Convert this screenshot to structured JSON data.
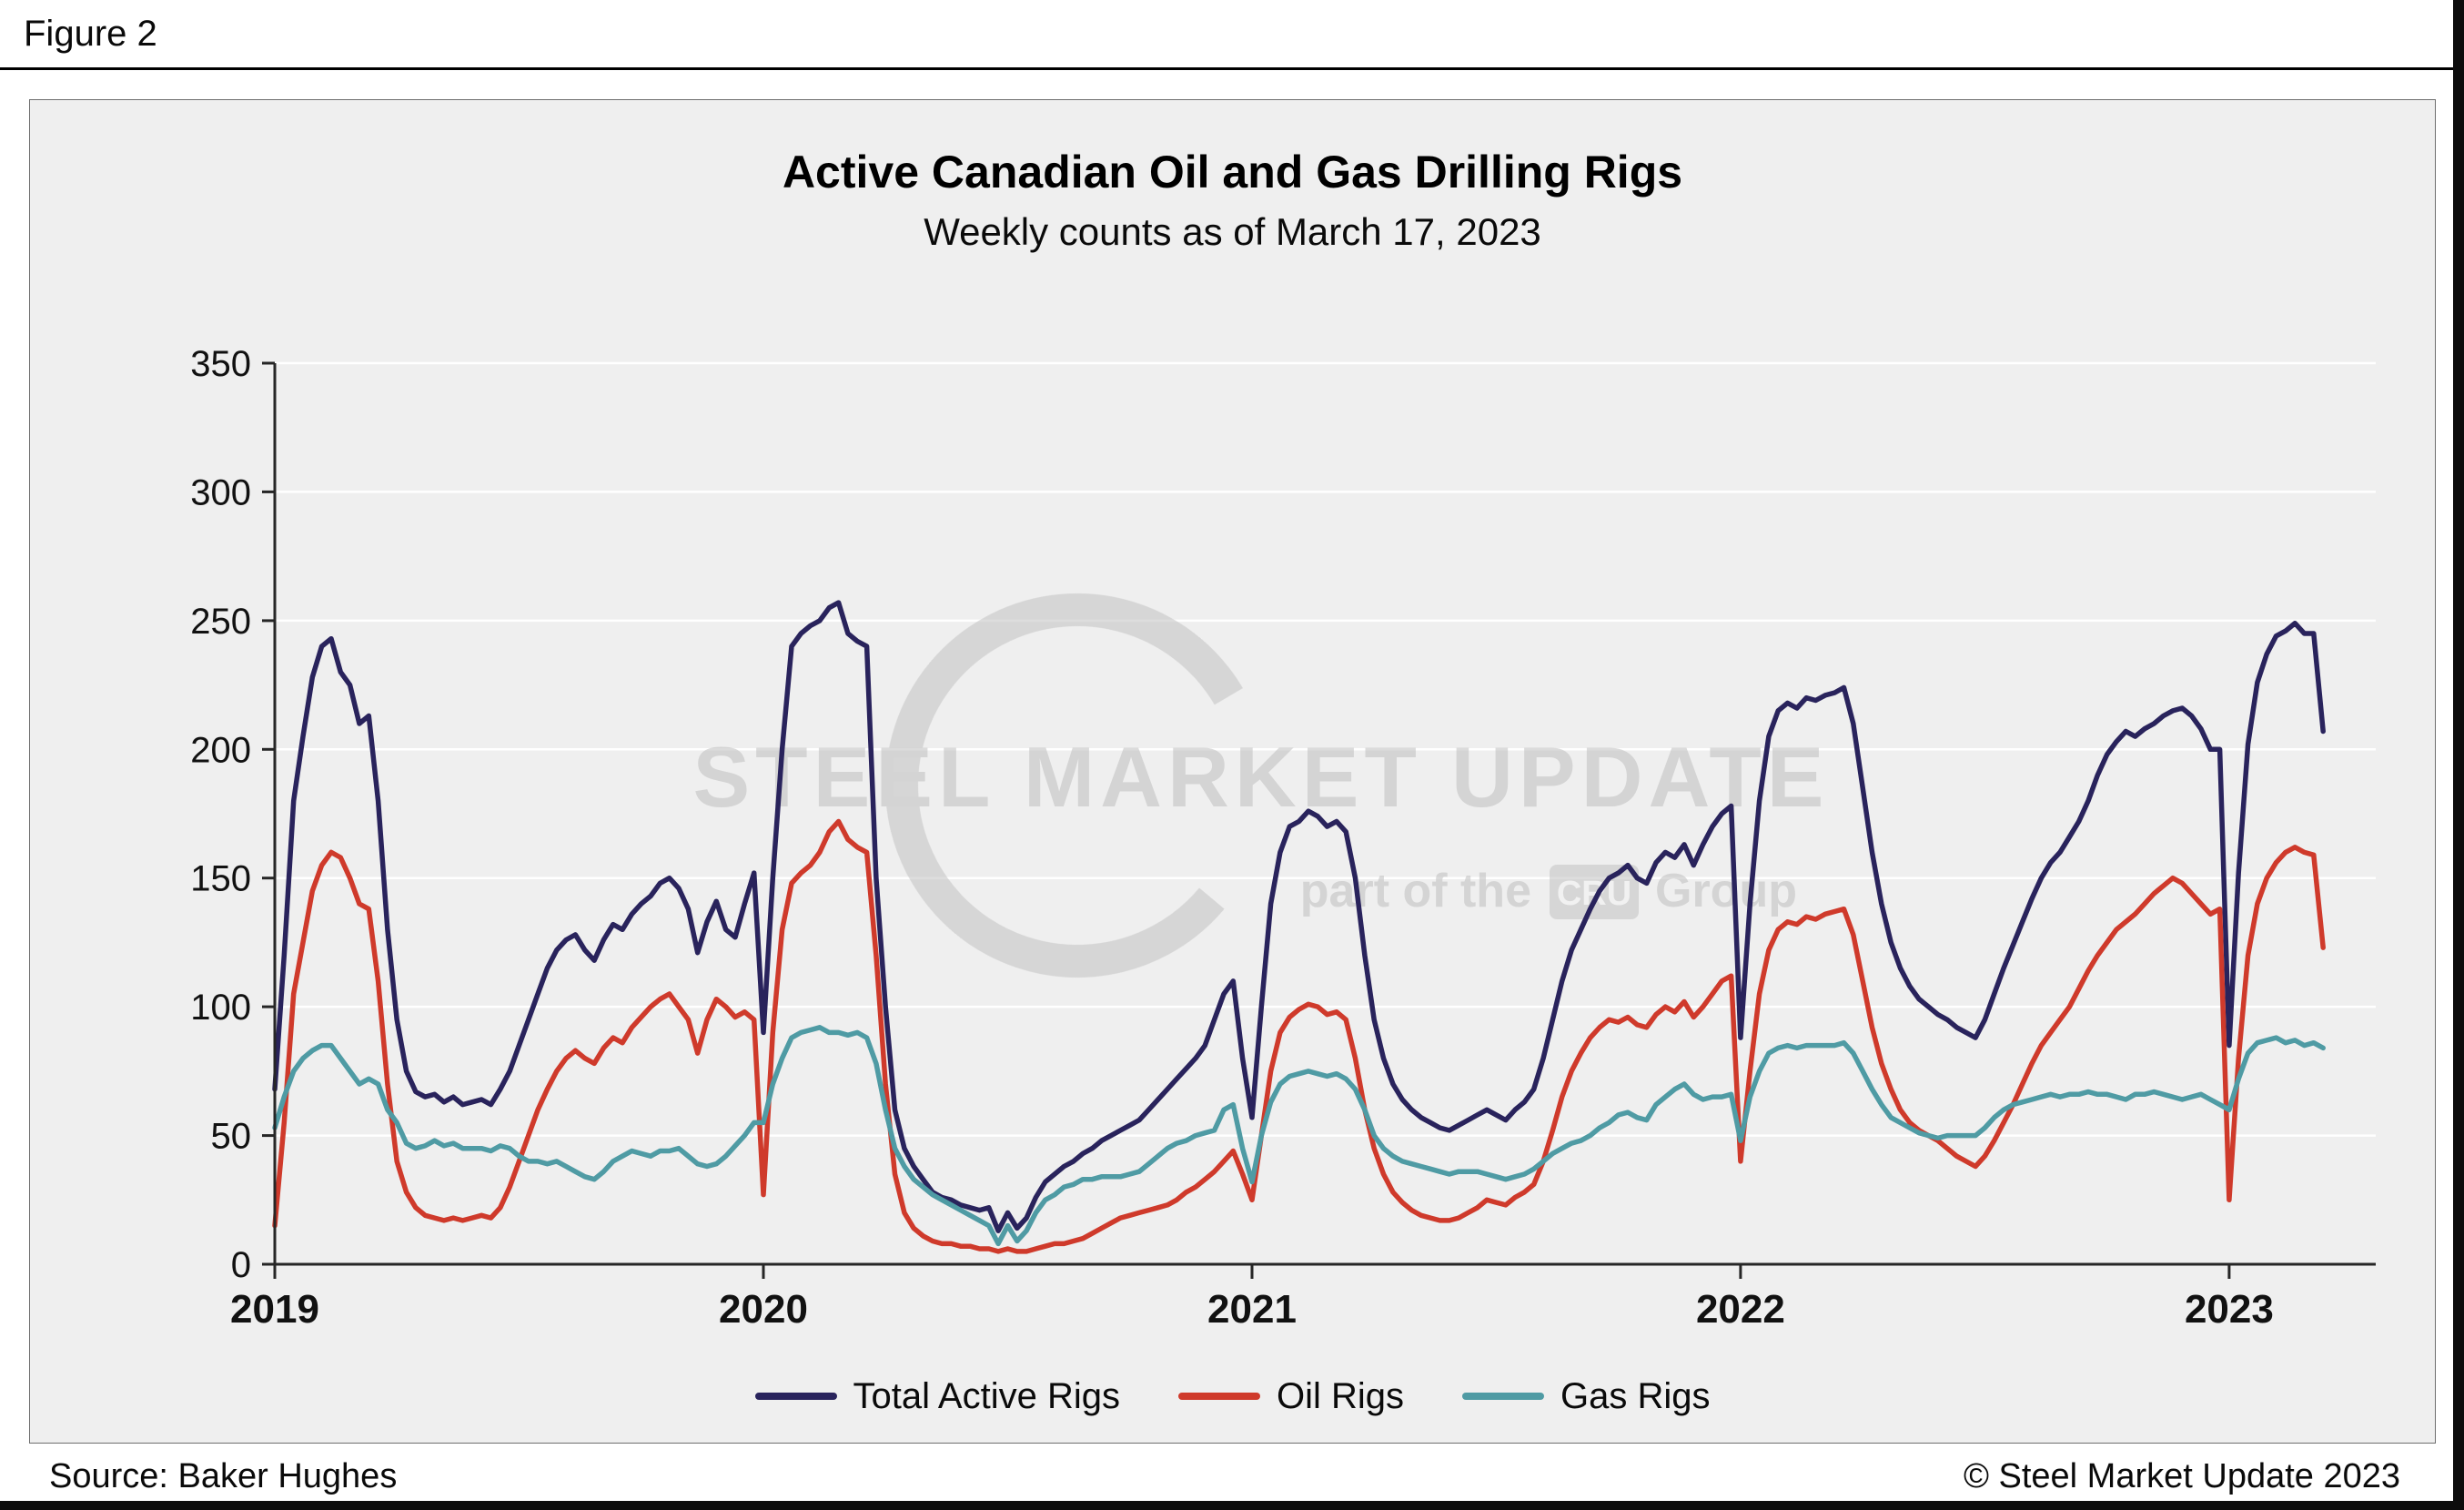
{
  "figure_label": "Figure 2",
  "title": "Active Canadian Oil and Gas Drilling Rigs",
  "subtitle": "Weekly counts as of March 17, 2023",
  "source": "Source: Baker Hughes",
  "copyright": "© Steel Market Update 2023",
  "watermark": {
    "text": "STEEL MARKET UPDATE",
    "sub_pre": "part of the",
    "logo": "CRU",
    "sub_post": "Group"
  },
  "colors": {
    "total": "#29235C",
    "oil": "#CF3A2B",
    "gas": "#4F9BA4",
    "panel_background": "#EFEFEF",
    "gridline": "#FFFFFF",
    "axis": "#262626"
  },
  "chart_data": {
    "type": "line",
    "title": "Active Canadian Oil and Gas Drilling Rigs",
    "subtitle": "Weekly counts as of March 17, 2023",
    "grid": "horizontal",
    "legend_position": "bottom",
    "x_axis": {
      "description": "weekly observations, Jan 2019 through Mar 17 2023",
      "domain": [
        2019,
        2023.3
      ],
      "points_per_year": 52,
      "tick_labels": [
        "2019",
        "2020",
        "2021",
        "2022",
        "2023"
      ]
    },
    "y_axis": {
      "min": 0,
      "max": 350,
      "step": 50,
      "tick_labels": [
        "0",
        "50",
        "100",
        "150",
        "200",
        "250",
        "300",
        "350"
      ]
    },
    "series": [
      {
        "name": "Total Active Rigs",
        "color": "#29235C",
        "values": [
          68,
          120,
          180,
          205,
          228,
          240,
          243,
          230,
          225,
          210,
          213,
          180,
          130,
          95,
          75,
          67,
          65,
          66,
          63,
          65,
          62,
          63,
          64,
          62,
          68,
          75,
          85,
          95,
          105,
          115,
          122,
          126,
          128,
          122,
          118,
          126,
          132,
          130,
          136,
          140,
          143,
          148,
          150,
          146,
          138,
          121,
          133,
          141,
          130,
          127,
          140,
          152,
          90,
          150,
          200,
          240,
          245,
          248,
          250,
          255,
          257,
          245,
          242,
          240,
          150,
          100,
          60,
          45,
          38,
          33,
          28,
          26,
          25,
          23,
          22,
          21,
          22,
          13,
          20,
          14,
          18,
          26,
          32,
          35,
          38,
          40,
          43,
          45,
          48,
          50,
          52,
          54,
          56,
          60,
          64,
          68,
          72,
          76,
          80,
          85,
          95,
          105,
          110,
          80,
          57,
          100,
          140,
          160,
          170,
          172,
          176,
          174,
          170,
          172,
          168,
          150,
          120,
          95,
          80,
          70,
          64,
          60,
          57,
          55,
          53,
          52,
          54,
          56,
          58,
          60,
          58,
          56,
          60,
          63,
          68,
          80,
          95,
          110,
          122,
          130,
          138,
          145,
          150,
          152,
          155,
          150,
          148,
          156,
          160,
          158,
          163,
          155,
          163,
          170,
          175,
          178,
          88,
          140,
          180,
          205,
          215,
          218,
          216,
          220,
          219,
          221,
          222,
          224,
          210,
          185,
          160,
          140,
          125,
          115,
          108,
          103,
          100,
          97,
          95,
          92,
          90,
          88,
          95,
          105,
          115,
          124,
          133,
          142,
          150,
          156,
          160,
          166,
          172,
          180,
          190,
          198,
          203,
          207,
          205,
          208,
          210,
          213,
          215,
          216,
          213,
          208,
          200,
          200,
          85,
          152,
          202,
          226,
          237,
          244,
          246,
          249,
          245,
          245,
          207
        ]
      },
      {
        "name": "Oil Rigs",
        "color": "#CF3A2B",
        "values": [
          15,
          55,
          105,
          125,
          145,
          155,
          160,
          158,
          150,
          140,
          138,
          110,
          70,
          40,
          28,
          22,
          19,
          18,
          17,
          18,
          17,
          18,
          19,
          18,
          22,
          30,
          40,
          50,
          60,
          68,
          75,
          80,
          83,
          80,
          78,
          84,
          88,
          86,
          92,
          96,
          100,
          103,
          105,
          100,
          95,
          82,
          95,
          103,
          100,
          96,
          98,
          95,
          27,
          90,
          130,
          148,
          152,
          155,
          160,
          168,
          172,
          165,
          162,
          160,
          120,
          70,
          35,
          20,
          14,
          11,
          9,
          8,
          8,
          7,
          7,
          6,
          6,
          5,
          6,
          5,
          5,
          6,
          7,
          8,
          8,
          9,
          10,
          12,
          14,
          16,
          18,
          19,
          20,
          21,
          22,
          23,
          25,
          28,
          30,
          33,
          36,
          40,
          44,
          35,
          25,
          50,
          75,
          90,
          96,
          99,
          101,
          100,
          97,
          98,
          95,
          80,
          60,
          45,
          35,
          28,
          24,
          21,
          19,
          18,
          17,
          17,
          18,
          20,
          22,
          25,
          24,
          23,
          26,
          28,
          31,
          40,
          52,
          65,
          75,
          82,
          88,
          92,
          95,
          94,
          96,
          93,
          92,
          97,
          100,
          98,
          102,
          96,
          100,
          105,
          110,
          112,
          40,
          75,
          105,
          122,
          130,
          133,
          132,
          135,
          134,
          136,
          137,
          138,
          128,
          110,
          92,
          78,
          68,
          60,
          55,
          52,
          50,
          48,
          45,
          42,
          40,
          38,
          42,
          48,
          55,
          62,
          70,
          78,
          85,
          90,
          95,
          100,
          107,
          114,
          120,
          125,
          130,
          133,
          136,
          140,
          144,
          147,
          150,
          148,
          144,
          140,
          136,
          138,
          25,
          80,
          120,
          140,
          150,
          156,
          160,
          162,
          160,
          159,
          123
        ]
      },
      {
        "name": "Gas Rigs",
        "color": "#4F9BA4",
        "values": [
          53,
          65,
          75,
          80,
          83,
          85,
          85,
          80,
          75,
          70,
          72,
          70,
          60,
          55,
          47,
          45,
          46,
          48,
          46,
          47,
          45,
          45,
          45,
          44,
          46,
          45,
          42,
          40,
          40,
          39,
          40,
          38,
          36,
          34,
          33,
          36,
          40,
          42,
          44,
          43,
          42,
          44,
          44,
          45,
          42,
          39,
          38,
          39,
          42,
          46,
          50,
          55,
          55,
          70,
          80,
          88,
          90,
          91,
          92,
          90,
          90,
          89,
          90,
          88,
          78,
          60,
          45,
          38,
          33,
          30,
          27,
          25,
          23,
          21,
          19,
          17,
          15,
          8,
          15,
          9,
          13,
          20,
          25,
          27,
          30,
          31,
          33,
          33,
          34,
          34,
          34,
          35,
          36,
          39,
          42,
          45,
          47,
          48,
          50,
          51,
          52,
          60,
          62,
          45,
          32,
          50,
          63,
          70,
          73,
          74,
          75,
          74,
          73,
          74,
          72,
          68,
          60,
          50,
          45,
          42,
          40,
          39,
          38,
          37,
          36,
          35,
          36,
          36,
          36,
          35,
          34,
          33,
          34,
          35,
          37,
          40,
          43,
          45,
          47,
          48,
          50,
          53,
          55,
          58,
          59,
          57,
          56,
          62,
          65,
          68,
          70,
          66,
          64,
          65,
          65,
          66,
          48,
          65,
          75,
          82,
          84,
          85,
          84,
          85,
          85,
          85,
          85,
          86,
          82,
          75,
          68,
          62,
          57,
          55,
          53,
          51,
          50,
          49,
          50,
          50,
          50,
          50,
          53,
          57,
          60,
          62,
          63,
          64,
          65,
          66,
          65,
          66,
          66,
          67,
          66,
          66,
          65,
          64,
          66,
          66,
          67,
          66,
          65,
          64,
          65,
          66,
          64,
          62,
          60,
          72,
          82,
          86,
          87,
          88,
          86,
          87,
          85,
          86,
          84
        ]
      }
    ]
  }
}
